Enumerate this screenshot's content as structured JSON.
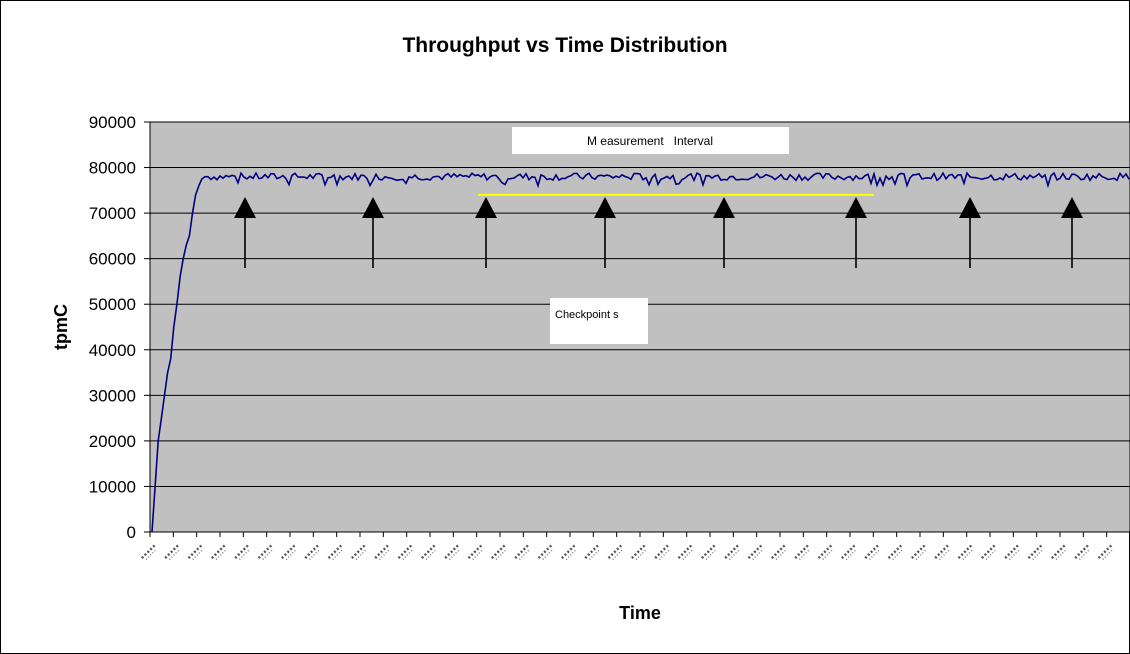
{
  "chart_data": {
    "type": "line",
    "title": "Throughput vs Time Distribution",
    "xlabel": "Time",
    "ylabel": "tpmC",
    "ylim": [
      0,
      90000
    ],
    "yticks": [
      "0",
      "10000",
      "20000",
      "30000",
      "40000",
      "50000",
      "60000",
      "70000",
      "80000",
      "90000"
    ],
    "grid": true,
    "plot_background": "#c0c0c0",
    "series": [
      {
        "color": "#000080",
        "ramp_up": [
          0,
          10000,
          20000,
          25000,
          30000,
          35000,
          38000,
          45000,
          50000,
          56000,
          60000,
          63000,
          65000,
          70000,
          74000,
          76000,
          77500,
          78000
        ],
        "steady_state_mean": 78000,
        "steady_state_range": [
          76000,
          79000
        ]
      }
    ],
    "annotations": {
      "measurement_interval_label": "M easurement   Interval",
      "checkpoints_label": "Checkpoint s",
      "measurement_interval_line_value": 74000,
      "measurement_interval_line_color": "#ffff00",
      "checkpoint_count": 8
    }
  }
}
